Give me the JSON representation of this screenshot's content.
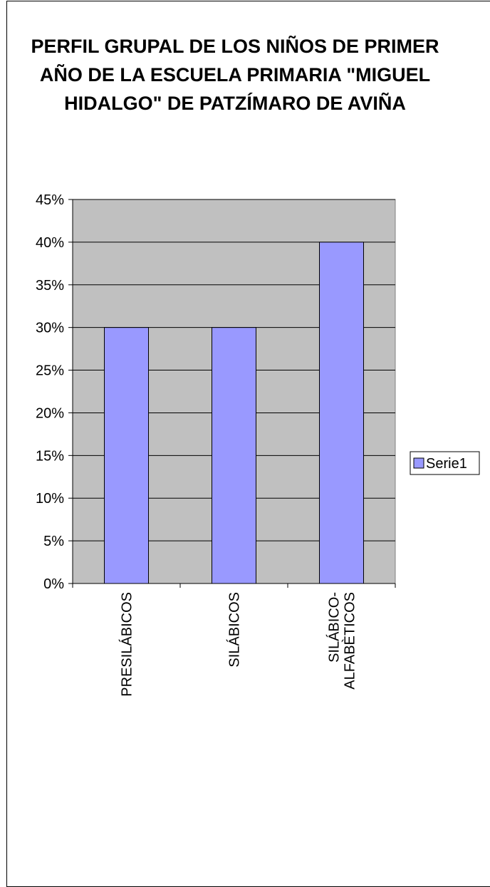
{
  "chart_data": {
    "type": "bar",
    "title": "PERFIL GRUPAL DE LOS NIÑOS DE PRIMER AÑO DE LA ESCUELA PRIMARIA \"MIGUEL HIDALGO\" DE PATZÍMARO DE AVIÑA",
    "categories": [
      [
        "PRESILÁBICOS"
      ],
      [
        "SILÁBICOS"
      ],
      [
        "SILÁBICO-",
        "ALFABÈTICOS"
      ]
    ],
    "series": [
      {
        "name": "Serie1",
        "values": [
          30,
          30,
          40
        ],
        "color": "#9999ff"
      }
    ],
    "ylim": [
      0,
      45
    ],
    "ytick_step": 5,
    "ytick_format": "percent",
    "plot_background": "#c0c0c0",
    "grid": true,
    "legend": "right"
  }
}
